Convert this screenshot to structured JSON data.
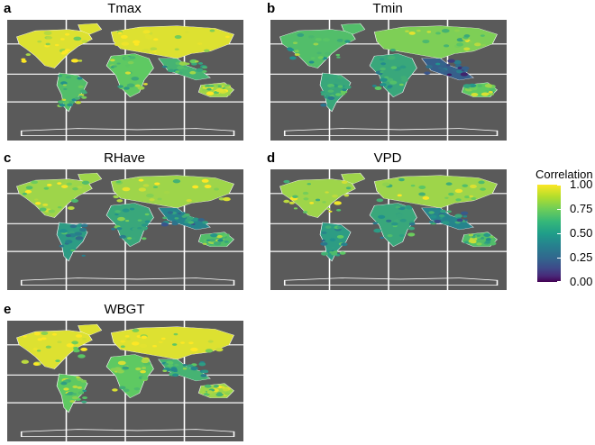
{
  "panels": [
    {
      "letter": "a",
      "title": "Tmax"
    },
    {
      "letter": "b",
      "title": "Tmin"
    },
    {
      "letter": "c",
      "title": "RHave"
    },
    {
      "letter": "d",
      "title": "VPD"
    },
    {
      "letter": "e",
      "title": "WBGT"
    }
  ],
  "legend": {
    "title": "Correlation",
    "ticks": [
      "1.00",
      "0.75",
      "0.50",
      "0.25",
      "0.00"
    ]
  },
  "chart_data": {
    "type": "heatmap",
    "colorscale": "viridis",
    "value_range": [
      0,
      1
    ],
    "panels": [
      {
        "name": "Tmax",
        "regions": {
          "north_america": 0.95,
          "south_america": 0.7,
          "europe_asia": 0.95,
          "africa": 0.75,
          "south_asia": 0.65,
          "australia": 0.85
        }
      },
      {
        "name": "Tmin",
        "regions": {
          "north_america": 0.7,
          "south_america": 0.6,
          "europe_asia": 0.8,
          "africa": 0.6,
          "south_asia": 0.3,
          "australia": 0.75
        }
      },
      {
        "name": "RHave",
        "regions": {
          "north_america": 0.85,
          "south_america": 0.55,
          "europe_asia": 0.85,
          "africa": 0.6,
          "south_asia": 0.45,
          "australia": 0.7
        }
      },
      {
        "name": "VPD",
        "regions": {
          "north_america": 0.85,
          "south_america": 0.55,
          "europe_asia": 0.85,
          "africa": 0.6,
          "south_asia": 0.45,
          "australia": 0.7
        }
      },
      {
        "name": "WBGT",
        "regions": {
          "north_america": 0.95,
          "south_america": 0.75,
          "europe_asia": 0.95,
          "africa": 0.75,
          "south_asia": 0.65,
          "australia": 0.85
        }
      }
    ]
  }
}
